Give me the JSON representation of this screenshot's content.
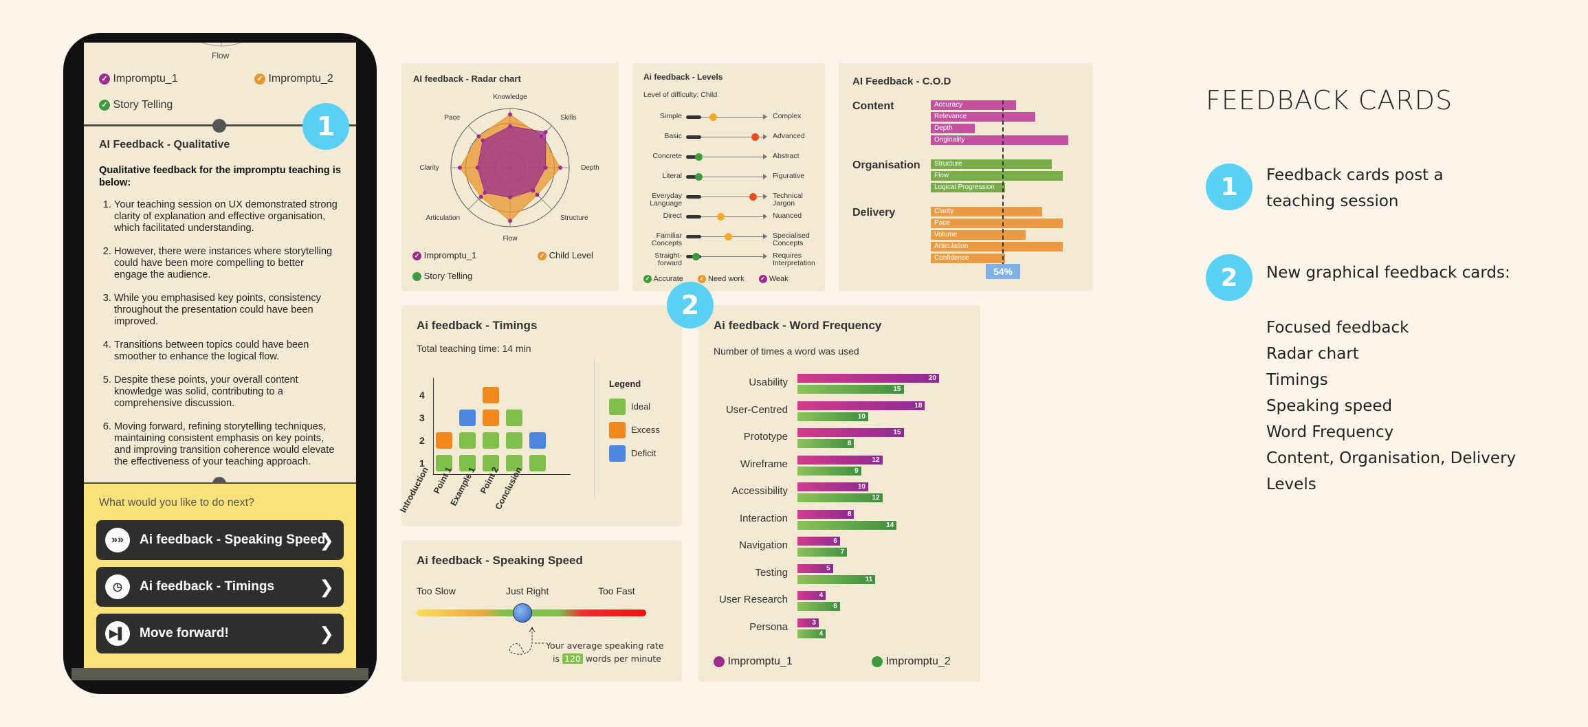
{
  "phone": {
    "top_label": "Flow",
    "legend": [
      "Impromptu_1",
      "Impromptu_2",
      "Story Telling"
    ],
    "badge": "1",
    "qual_title": "AI Feedback - Qualitative",
    "qual_intro": "Qualitative feedback for the impromptu teaching is below:",
    "qual_items": [
      "Your teaching session on UX demonstrated strong clarity of explanation and effective organisation, which facilitated understanding.",
      "However, there were instances where storytelling could have been more compelling to better engage the audience.",
      "While you emphasised key points, consistency throughout the presentation could have been improved.",
      "Transitions between topics could have been smoother to enhance the logical flow.",
      "Despite these points, your overall content knowledge was solid, contributing to a comprehensive discussion.",
      "Moving forward, refining storytelling techniques, maintaining consistent emphasis on key points, and improving transition coherence would elevate the effectiveness of your teaching approach."
    ],
    "next_prompt": "What would you like to do next?",
    "actions": [
      {
        "label": "Ai feedback - Speaking Speed",
        "icon": "fast-forward-icon"
      },
      {
        "label": "Ai feedback - Timings",
        "icon": "clock-icon"
      },
      {
        "label": "Move forward!",
        "icon": "skip-icon"
      }
    ]
  },
  "radar": {
    "title": "AI feedback - Radar chart",
    "axes": [
      "Knowledge",
      "Skills",
      "Depth",
      "Structure",
      "Flow",
      "Articulation",
      "Clarity",
      "Pace"
    ],
    "series": [
      {
        "name": "Impromptu_1",
        "color": "#9c2d8c",
        "values": [
          0.7,
          0.85,
          0.6,
          0.55,
          0.5,
          0.6,
          0.55,
          0.65
        ]
      },
      {
        "name": "Child Level",
        "color": "#e8962f",
        "values": [
          0.9,
          0.75,
          0.85,
          0.65,
          0.9,
          0.7,
          0.85,
          0.75
        ]
      }
    ],
    "legend": [
      "Impromptu_1",
      "Child Level",
      "Story Telling"
    ]
  },
  "levels": {
    "title": "Ai feedback - Levels",
    "subtitle": "Level of difficulty: Child",
    "rows": [
      {
        "left": "Simple",
        "right": "Complex",
        "value": 0.3,
        "color": "#f3a92a"
      },
      {
        "left": "Basic",
        "right": "Advanced",
        "value": 0.85,
        "color": "#ee4b1f"
      },
      {
        "left": "Concrete",
        "right": "Abstract",
        "value": 0.12,
        "color": "#3d9a3d"
      },
      {
        "left": "Literal",
        "right": "Figurative",
        "value": 0.12,
        "color": "#3d9a3d"
      },
      {
        "left": "Everyday Language",
        "right": "Technical Jargon",
        "value": 0.82,
        "color": "#ee4b1f"
      },
      {
        "left": "Direct",
        "right": "Nuanced",
        "value": 0.4,
        "color": "#f3a92a"
      },
      {
        "left": "Familiar Concepts",
        "right": "Specialised Concepts",
        "value": 0.5,
        "color": "#f3a92a"
      },
      {
        "left": "Straight-forward",
        "right": "Requires Interpretation",
        "value": 0.08,
        "color": "#3d9a3d"
      }
    ],
    "legend": [
      "Accurate",
      "Need work",
      "Weak"
    ]
  },
  "cod": {
    "title": "AI Feedback - C.O.D",
    "groups": [
      {
        "name": "Content",
        "items": [
          {
            "label": "Accuracy",
            "value": 0.62
          },
          {
            "label": "Relevance",
            "value": 0.76
          },
          {
            "label": "Depth",
            "value": 0.32
          },
          {
            "label": "Originality",
            "value": 1.0
          }
        ],
        "color": "#c4519f"
      },
      {
        "name": "Organisation",
        "items": [
          {
            "label": "Structure",
            "value": 0.88
          },
          {
            "label": "Flow",
            "value": 0.96
          },
          {
            "label": "Logical Progression",
            "value": 0.54
          }
        ],
        "color": "#79ad49"
      },
      {
        "name": "Delivery",
        "items": [
          {
            "label": "Clarity",
            "value": 0.81
          },
          {
            "label": "Pace",
            "value": 0.96
          },
          {
            "label": "Volume",
            "value": 0.69
          },
          {
            "label": "Articulation",
            "value": 0.96
          },
          {
            "label": "Confidence",
            "value": 0.54
          }
        ],
        "color": "#eb9b43"
      }
    ],
    "marker": "54%"
  },
  "timings": {
    "title": "Ai feedback - Timings",
    "subtitle": "Total teaching time: 14 min",
    "yticks": [
      "1",
      "2",
      "3",
      "4"
    ],
    "categories": [
      "Introduction",
      "Point 1",
      "Example 1",
      "Point 2",
      "Conclusion"
    ],
    "columns": [
      [
        "ideal",
        "excess"
      ],
      [
        "ideal",
        "ideal",
        "deficit"
      ],
      [
        "ideal",
        "ideal",
        "excess",
        "excess"
      ],
      [
        "ideal",
        "ideal",
        "ideal"
      ],
      [
        "ideal",
        "deficit"
      ]
    ],
    "legend_title": "Legend",
    "legend": [
      {
        "label": "Ideal",
        "color": "#7fbf4a"
      },
      {
        "label": "Excess",
        "color": "#f08a1e"
      },
      {
        "label": "Deficit",
        "color": "#4c86e0"
      }
    ]
  },
  "speed": {
    "title": "Ai feedback - Speaking Speed",
    "labels": [
      "Too Slow",
      "Just Right",
      "Too Fast"
    ],
    "value": 0.46,
    "note_line1": "Your average speaking rate",
    "note_pre": "is",
    "wpm": "120",
    "note_post": "words per minute"
  },
  "wordfreq": {
    "badge": "2",
    "title": "Ai feedback - Word Frequency",
    "subtitle": "Number of times a word was used",
    "max": 20,
    "words": [
      {
        "word": "Usability",
        "a": 20,
        "b": 15
      },
      {
        "word": "User-Centred",
        "a": 18,
        "b": 10
      },
      {
        "word": "Prototype",
        "a": 15,
        "b": 8
      },
      {
        "word": "Wireframe",
        "a": 12,
        "b": 9
      },
      {
        "word": "Accessibility",
        "a": 10,
        "b": 12
      },
      {
        "word": "Interaction",
        "a": 8,
        "b": 14
      },
      {
        "word": "Navigation",
        "a": 6,
        "b": 7
      },
      {
        "word": "Testing",
        "a": 5,
        "b": 11
      },
      {
        "word": "User Research",
        "a": 4,
        "b": 6
      },
      {
        "word": "Persona",
        "a": 3,
        "b": 4
      }
    ],
    "legend": [
      "Impromptu_1",
      "Impromptu_2"
    ]
  },
  "notes": {
    "heading": "FEEDBACK CARDS",
    "item1_badge": "1",
    "item1_text": "Feedback cards post a teaching session",
    "item2_badge": "2",
    "item2_text": "New graphical feedback cards:",
    "list": [
      "Focused feedback",
      "Radar chart",
      "Timings",
      "Speaking speed",
      "Word Frequency",
      "Content, Organisation, Delivery",
      "Levels"
    ]
  },
  "colors": {
    "badge": "#5ad0f5",
    "magenta": "#9c2d8c",
    "green": "#3d9a3d",
    "orange": "#e8962f"
  }
}
